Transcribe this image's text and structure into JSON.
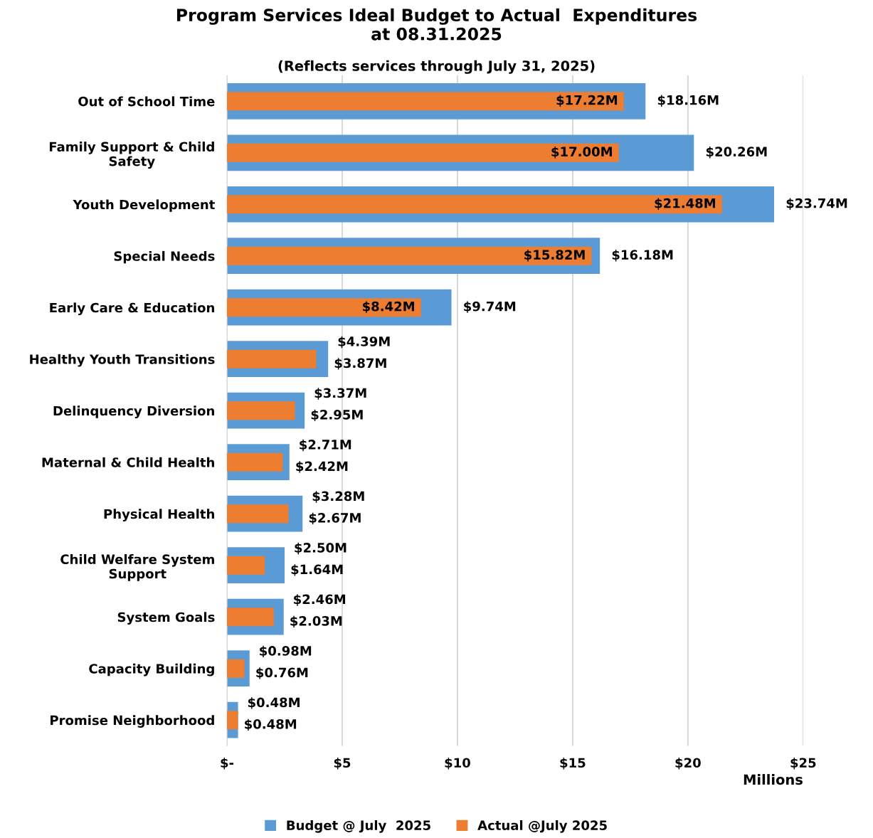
{
  "chart_data": {
    "type": "bar",
    "orientation": "horizontal",
    "title": "Program Services Ideal Budget to Actual  Expenditures\nat 08.31.2025",
    "subtitle": "(Reflects services through July 31, 2025)",
    "xlabel": "Millions",
    "categories": [
      "Out of School Time",
      "Family Support & Child Safety",
      "Youth Development",
      "Special Needs",
      "Early Care & Education",
      "Healthy Youth Transitions",
      "Delinquency Diversion",
      "Maternal & Child Health",
      "Physical Health",
      "Child Welfare System Support",
      "System Goals",
      "Capacity Building",
      "Promise Neighborhood"
    ],
    "series": [
      {
        "name": "Budget @ July  2025",
        "color": "#5b9bd5",
        "values": [
          18.16,
          20.26,
          23.74,
          16.18,
          9.74,
          4.39,
          3.37,
          2.71,
          3.28,
          2.5,
          2.46,
          0.98,
          0.48
        ],
        "value_labels": [
          "$18.16M",
          "$20.26M",
          "$23.74M",
          "$16.18M",
          "$9.74M",
          "$4.39M",
          "$3.37M",
          "$2.71M",
          "$3.28M",
          "$2.50M",
          "$2.46M",
          "$0.98M",
          "$0.48M"
        ]
      },
      {
        "name": "Actual @July 2025",
        "color": "#ed7d31",
        "values": [
          17.22,
          17.0,
          21.48,
          15.82,
          8.42,
          3.87,
          2.95,
          2.42,
          2.67,
          1.64,
          2.03,
          0.76,
          0.48
        ],
        "value_labels": [
          "$17.22M",
          "$17.00M",
          "$21.48M",
          "$15.82M",
          "$8.42M",
          "$3.87M",
          "$2.95M",
          "$2.42M",
          "$2.67M",
          "$1.64M",
          "$2.03M",
          "$0.76M",
          "$0.48M"
        ]
      }
    ],
    "xlim": [
      0,
      25
    ],
    "xticks": [
      {
        "value": 0,
        "label": "$-"
      },
      {
        "value": 5,
        "label": "$5"
      },
      {
        "value": 10,
        "label": "$10"
      },
      {
        "value": 15,
        "label": "$15"
      },
      {
        "value": 20,
        "label": "$20"
      },
      {
        "value": 25,
        "label": "$25"
      }
    ],
    "grid": "x",
    "legend": "bottom"
  }
}
